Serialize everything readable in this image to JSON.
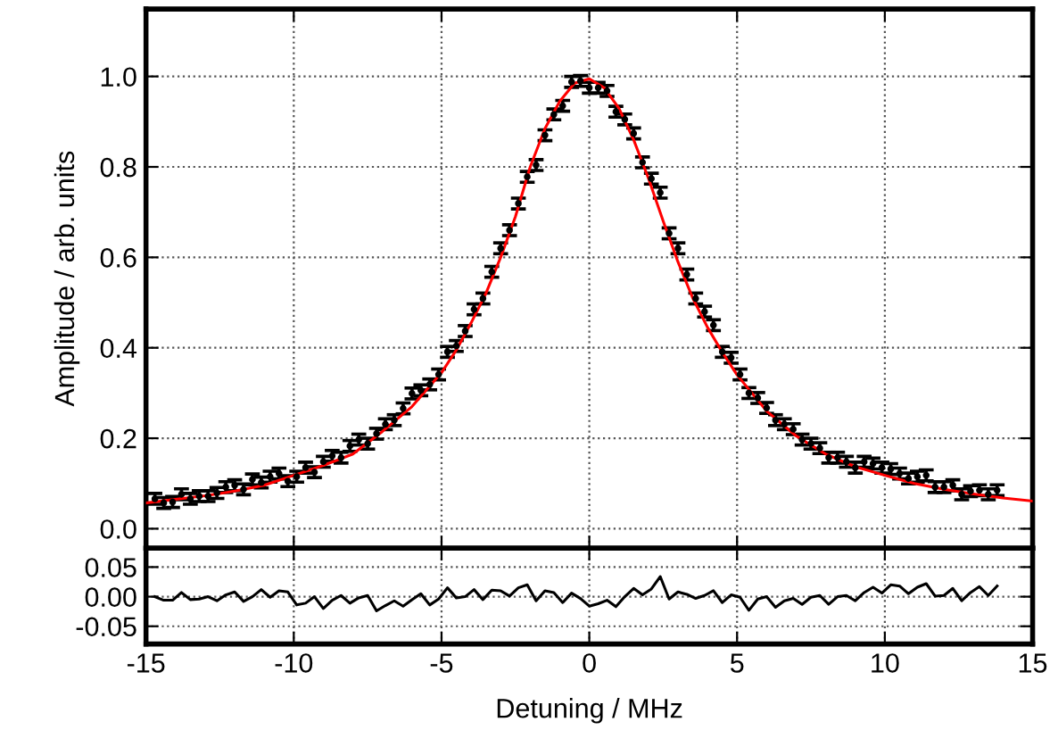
{
  "chart_data": [
    {
      "type": "scatter",
      "ylabel": "Amplitude / arb. units",
      "xlim": [
        -15,
        15
      ],
      "xticks": [
        -15,
        -10,
        -5,
        0,
        5,
        10,
        15
      ],
      "ylim": [
        -0.043,
        1.149
      ],
      "yticks": [
        {
          "value": 0,
          "label": "0.0"
        },
        {
          "value": 0.2,
          "label": "0.2"
        },
        {
          "value": 0.4,
          "label": "0.4"
        },
        {
          "value": 0.6,
          "label": "0.6"
        },
        {
          "value": 0.8,
          "label": "0.8"
        },
        {
          "value": 1.0,
          "label": "1.0"
        }
      ],
      "tick_labels": "y",
      "grid": true,
      "marker": "circle",
      "series": [
        {
          "type": "scatter",
          "color": "#000000",
          "x": [
            -14.7,
            -14.4,
            -14.1,
            -13.8,
            -13.5,
            -13.2,
            -12.9,
            -12.6,
            -12.3,
            -12.0,
            -11.7,
            -11.4,
            -11.1,
            -10.8,
            -10.5,
            -10.2,
            -9.9,
            -9.6,
            -9.3,
            -9.0,
            -8.7,
            -8.4,
            -8.1,
            -7.8,
            -7.5,
            -7.2,
            -6.9,
            -6.6,
            -6.3,
            -6.0,
            -5.7,
            -5.4,
            -5.1,
            -4.8,
            -4.5,
            -4.2,
            -3.9,
            -3.6,
            -3.3,
            -3.0,
            -2.7,
            -2.4,
            -2.1,
            -1.8,
            -1.5,
            -1.2,
            -0.9,
            -0.6,
            -0.3,
            0.0,
            0.3,
            0.6,
            0.9,
            1.2,
            1.5,
            1.8,
            2.1,
            2.4,
            2.7,
            3.0,
            3.3,
            3.6,
            3.9,
            4.2,
            4.5,
            4.8,
            5.1,
            5.4,
            5.7,
            6.0,
            6.3,
            6.6,
            6.9,
            7.2,
            7.5,
            7.8,
            8.1,
            8.4,
            8.7,
            9.0,
            9.3,
            9.6,
            9.9,
            10.2,
            10.5,
            10.8,
            11.1,
            11.4,
            11.7,
            12.0,
            12.3,
            12.6,
            12.9,
            13.2,
            13.5,
            13.8
          ],
          "values": [
            0.066,
            0.057,
            0.059,
            0.076,
            0.066,
            0.072,
            0.072,
            0.079,
            0.092,
            0.096,
            0.087,
            0.109,
            0.102,
            0.115,
            0.122,
            0.105,
            0.115,
            0.135,
            0.125,
            0.148,
            0.161,
            0.157,
            0.183,
            0.197,
            0.188,
            0.21,
            0.231,
            0.24,
            0.266,
            0.299,
            0.306,
            0.319,
            0.341,
            0.391,
            0.404,
            0.437,
            0.485,
            0.509,
            0.568,
            0.62,
            0.66,
            0.719,
            0.778,
            0.804,
            0.87,
            0.916,
            0.935,
            0.988,
            0.99,
            0.975,
            0.975,
            0.968,
            0.922,
            0.905,
            0.874,
            0.81,
            0.774,
            0.743,
            0.653,
            0.62,
            0.562,
            0.509,
            0.48,
            0.45,
            0.391,
            0.378,
            0.341,
            0.3,
            0.289,
            0.267,
            0.24,
            0.231,
            0.22,
            0.197,
            0.188,
            0.178,
            0.157,
            0.157,
            0.148,
            0.135,
            0.148,
            0.144,
            0.135,
            0.132,
            0.122,
            0.111,
            0.115,
            0.118,
            0.092,
            0.092,
            0.096,
            0.076,
            0.083,
            0.085,
            0.076,
            0.085
          ],
          "errors": [
            0.012,
            0.012,
            0.012,
            0.012,
            0.012,
            0.012,
            0.012,
            0.012,
            0.012,
            0.012,
            0.012,
            0.012,
            0.012,
            0.012,
            0.012,
            0.012,
            0.012,
            0.012,
            0.012,
            0.012,
            0.012,
            0.012,
            0.012,
            0.012,
            0.012,
            0.012,
            0.012,
            0.012,
            0.012,
            0.012,
            0.012,
            0.012,
            0.012,
            0.012,
            0.012,
            0.012,
            0.012,
            0.012,
            0.012,
            0.012,
            0.012,
            0.012,
            0.012,
            0.012,
            0.012,
            0.012,
            0.012,
            0.012,
            0.012,
            0.012,
            0.012,
            0.012,
            0.012,
            0.012,
            0.012,
            0.012,
            0.012,
            0.012,
            0.012,
            0.012,
            0.012,
            0.012,
            0.012,
            0.012,
            0.012,
            0.012,
            0.012,
            0.012,
            0.012,
            0.012,
            0.012,
            0.012,
            0.012,
            0.012,
            0.012,
            0.012,
            0.012,
            0.012,
            0.012,
            0.012,
            0.012,
            0.012,
            0.012,
            0.012,
            0.012,
            0.012,
            0.012,
            0.012,
            0.012,
            0.012,
            0.012,
            0.012,
            0.012,
            0.012,
            0.012,
            0.012
          ]
        },
        {
          "type": "line",
          "marker": "none",
          "color": "#ff0000",
          "x": [
            -15,
            -14,
            -13,
            -12,
            -11,
            -10,
            -9,
            -8,
            -7,
            -6,
            -5,
            -4.5,
            -4,
            -3.5,
            -3,
            -2.5,
            -2,
            -1.5,
            -1,
            -0.5,
            0,
            0.5,
            1,
            1.5,
            2,
            2.5,
            3,
            3.5,
            4,
            4.5,
            5,
            6,
            7,
            8,
            9,
            10,
            11,
            12,
            13,
            14,
            15
          ],
          "values": [
            0.057,
            0.065,
            0.073,
            0.083,
            0.096,
            0.118,
            0.14,
            0.165,
            0.215,
            0.27,
            0.345,
            0.395,
            0.455,
            0.52,
            0.6,
            0.69,
            0.8,
            0.885,
            0.945,
            0.985,
            0.995,
            0.975,
            0.93,
            0.86,
            0.775,
            0.68,
            0.59,
            0.51,
            0.445,
            0.39,
            0.34,
            0.26,
            0.205,
            0.165,
            0.137,
            0.118,
            0.1,
            0.087,
            0.077,
            0.068,
            0.061
          ]
        }
      ]
    },
    {
      "type": "line",
      "xlabel": "Detuning / MHz",
      "xlim": [
        -15,
        15
      ],
      "xticks": [
        -15,
        -10,
        -5,
        0,
        5,
        10,
        15
      ],
      "ylim": [
        -0.08,
        0.082
      ],
      "yticks": [
        {
          "value": -0.05,
          "label": "-0.05"
        },
        {
          "value": 0,
          "label": "0.00"
        },
        {
          "value": 0.05,
          "label": "0.05"
        }
      ],
      "grid": true,
      "marker": "none",
      "series": [
        {
          "color": "#000000",
          "x": [
            -14.7,
            -14.4,
            -14.1,
            -13.8,
            -13.5,
            -13.2,
            -12.9,
            -12.6,
            -12.3,
            -12.0,
            -11.7,
            -11.4,
            -11.1,
            -10.8,
            -10.5,
            -10.2,
            -9.9,
            -9.6,
            -9.3,
            -9.0,
            -8.7,
            -8.4,
            -8.1,
            -7.8,
            -7.5,
            -7.2,
            -6.9,
            -6.6,
            -6.3,
            -6.0,
            -5.7,
            -5.4,
            -5.1,
            -4.8,
            -4.5,
            -4.2,
            -3.9,
            -3.6,
            -3.3,
            -3.0,
            -2.7,
            -2.4,
            -2.1,
            -1.8,
            -1.5,
            -1.2,
            -0.9,
            -0.6,
            -0.3,
            0.0,
            0.3,
            0.6,
            0.9,
            1.2,
            1.5,
            1.8,
            2.1,
            2.4,
            2.7,
            3.0,
            3.3,
            3.6,
            3.9,
            4.2,
            4.5,
            4.8,
            5.1,
            5.4,
            5.7,
            6.0,
            6.3,
            6.6,
            6.9,
            7.2,
            7.5,
            7.8,
            8.1,
            8.4,
            8.7,
            9.0,
            9.3,
            9.6,
            9.9,
            10.2,
            10.5,
            10.8,
            11.1,
            11.4,
            11.7,
            12.0,
            12.3,
            12.6,
            12.9,
            13.2,
            13.5,
            13.8
          ],
          "values": [
            0.0,
            -0.006,
            -0.006,
            0.007,
            -0.005,
            -0.004,
            0.0,
            -0.007,
            0.003,
            0.008,
            -0.008,
            0.0,
            0.012,
            -0.001,
            0.01,
            0.008,
            -0.014,
            -0.011,
            0.0,
            -0.02,
            -0.006,
            0.002,
            -0.011,
            -0.002,
            0.002,
            -0.024,
            -0.015,
            -0.007,
            -0.016,
            -0.005,
            0.005,
            -0.014,
            -0.004,
            0.015,
            -0.002,
            0.0,
            0.012,
            -0.005,
            0.011,
            0.01,
            0.001,
            0.015,
            0.02,
            -0.007,
            0.01,
            0.007,
            -0.01,
            0.006,
            -0.003,
            -0.016,
            -0.012,
            -0.006,
            -0.017,
            0.0,
            0.014,
            0.003,
            0.013,
            0.034,
            -0.004,
            0.008,
            0.004,
            -0.003,
            0.002,
            0.01,
            -0.01,
            0.003,
            -0.001,
            -0.023,
            -0.004,
            0.0,
            -0.018,
            -0.007,
            -0.003,
            -0.013,
            -0.001,
            0.002,
            -0.013,
            0.0,
            0.002,
            -0.007,
            0.007,
            0.016,
            0.006,
            0.02,
            0.018,
            0.005,
            0.016,
            0.022,
            0.001,
            0.002,
            0.014,
            -0.007,
            0.007,
            0.017,
            0.002,
            0.018
          ]
        }
      ]
    }
  ]
}
